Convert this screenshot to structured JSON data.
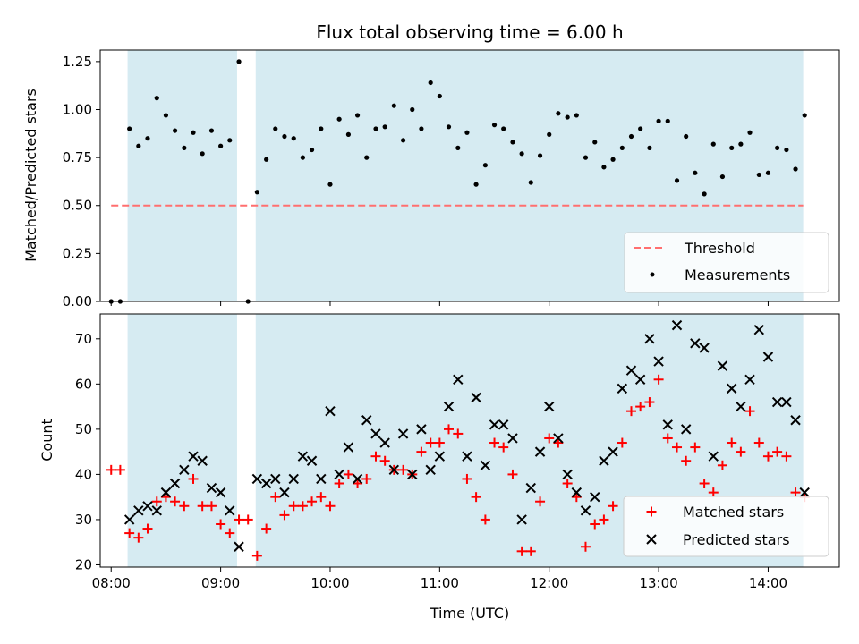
{
  "title": "Flux total observing time = 6.00 h",
  "colors": {
    "band": "#add8e6",
    "threshold": "#ff6f6f",
    "measurement": "#000000",
    "matched": "#ff0000",
    "predicted": "#000000"
  },
  "chart_data": [
    {
      "type": "scatter",
      "title": "Flux total observing time = 6.00 h",
      "xlabel": "",
      "ylabel": "Matched/Predicted stars",
      "xlim": [
        7.9,
        14.65
      ],
      "ylim": [
        0.0,
        1.31
      ],
      "yticks": [
        0.0,
        0.25,
        0.5,
        0.75,
        1.0,
        1.25
      ],
      "ytick_labels": [
        "0.00",
        "0.25",
        "0.50",
        "0.75",
        "1.00",
        "1.25"
      ],
      "shaded_bands": [
        [
          8.15,
          9.15
        ],
        [
          9.32,
          14.32
        ]
      ],
      "threshold": {
        "name": "Threshold",
        "y": 0.5,
        "x_range": [
          8.0,
          14.32
        ]
      },
      "legend_position": "lower right",
      "series": [
        {
          "name": "Measurements",
          "x": [
            8.0,
            8.083,
            8.167,
            8.25,
            8.333,
            8.417,
            8.5,
            8.583,
            8.667,
            8.75,
            8.833,
            8.917,
            9.0,
            9.083,
            9.167,
            9.25,
            9.333,
            9.417,
            9.5,
            9.583,
            9.667,
            9.75,
            9.833,
            9.917,
            10.0,
            10.083,
            10.167,
            10.25,
            10.333,
            10.417,
            10.5,
            10.583,
            10.667,
            10.75,
            10.833,
            10.917,
            11.0,
            11.083,
            11.167,
            11.25,
            11.333,
            11.417,
            11.5,
            11.583,
            11.667,
            11.75,
            11.833,
            11.917,
            12.0,
            12.083,
            12.167,
            12.25,
            12.333,
            12.417,
            12.5,
            12.583,
            12.667,
            12.75,
            12.833,
            12.917,
            13.0,
            13.083,
            13.167,
            13.25,
            13.333,
            13.417,
            13.5,
            13.583,
            13.667,
            13.75,
            13.833,
            13.917,
            14.0,
            14.083,
            14.167,
            14.25,
            14.333
          ],
          "y": [
            0.0,
            0.0,
            0.9,
            0.81,
            0.85,
            1.06,
            0.97,
            0.89,
            0.8,
            0.88,
            0.77,
            0.89,
            0.81,
            0.84,
            1.25,
            0.0,
            0.57,
            0.74,
            0.9,
            0.86,
            0.85,
            0.75,
            0.79,
            0.9,
            0.61,
            0.95,
            0.87,
            0.97,
            0.75,
            0.9,
            0.91,
            1.02,
            0.84,
            1.0,
            0.9,
            1.14,
            1.07,
            0.91,
            0.8,
            0.88,
            0.61,
            0.71,
            0.92,
            0.9,
            0.83,
            0.77,
            0.62,
            0.76,
            0.87,
            0.98,
            0.96,
            0.97,
            0.75,
            0.83,
            0.7,
            0.74,
            0.8,
            0.86,
            0.9,
            0.8,
            0.94,
            0.94,
            0.63,
            0.86,
            0.67,
            0.56,
            0.82,
            0.65,
            0.8,
            0.82,
            0.88,
            0.66,
            0.67,
            0.8,
            0.79,
            0.69,
            0.97
          ]
        }
      ]
    },
    {
      "type": "scatter",
      "title": "",
      "xlabel": "Time (UTC)",
      "ylabel": "Count",
      "xlim": [
        7.9,
        14.65
      ],
      "ylim": [
        19.5,
        75.5
      ],
      "xticks": [
        8,
        9,
        10,
        11,
        12,
        13,
        14
      ],
      "xtick_labels": [
        "08:00",
        "09:00",
        "10:00",
        "11:00",
        "12:00",
        "13:00",
        "14:00"
      ],
      "yticks": [
        20,
        30,
        40,
        50,
        60,
        70
      ],
      "ytick_labels": [
        "20",
        "30",
        "40",
        "50",
        "60",
        "70"
      ],
      "shaded_bands": [
        [
          8.15,
          9.15
        ],
        [
          9.32,
          14.32
        ]
      ],
      "legend_position": "lower right",
      "series": [
        {
          "name": "Matched stars",
          "marker": "+",
          "x": [
            8.0,
            8.083,
            8.167,
            8.25,
            8.333,
            8.417,
            8.5,
            8.583,
            8.667,
            8.75,
            8.833,
            8.917,
            9.0,
            9.083,
            9.167,
            9.25,
            9.333,
            9.417,
            9.5,
            9.583,
            9.667,
            9.75,
            9.833,
            9.917,
            10.0,
            10.083,
            10.167,
            10.25,
            10.333,
            10.417,
            10.5,
            10.583,
            10.667,
            10.75,
            10.833,
            10.917,
            11.0,
            11.083,
            11.167,
            11.25,
            11.333,
            11.417,
            11.5,
            11.583,
            11.667,
            11.75,
            11.833,
            11.917,
            12.0,
            12.083,
            12.167,
            12.25,
            12.333,
            12.417,
            12.5,
            12.583,
            12.667,
            12.75,
            12.833,
            12.917,
            13.0,
            13.083,
            13.167,
            13.25,
            13.333,
            13.417,
            13.5,
            13.583,
            13.667,
            13.75,
            13.833,
            13.917,
            14.0,
            14.083,
            14.167,
            14.25,
            14.333
          ],
          "y": [
            41,
            41,
            27,
            26,
            28,
            34,
            35,
            34,
            33,
            39,
            33,
            33,
            29,
            27,
            30,
            30,
            22,
            28,
            35,
            31,
            33,
            33,
            34,
            35,
            33,
            38,
            40,
            38,
            39,
            44,
            43,
            41,
            41,
            40,
            45,
            47,
            47,
            50,
            49,
            39,
            35,
            30,
            47,
            46,
            40,
            23,
            23,
            34,
            48,
            47,
            38,
            35,
            24,
            29,
            30,
            33,
            47,
            54,
            55,
            56,
            61,
            48,
            46,
            43,
            46,
            38,
            36,
            42,
            47,
            45,
            54,
            47,
            44,
            45,
            44,
            36,
            35
          ]
        },
        {
          "name": "Predicted stars",
          "marker": "x",
          "x": [
            8.167,
            8.25,
            8.333,
            8.417,
            8.5,
            8.583,
            8.667,
            8.75,
            8.833,
            8.917,
            9.0,
            9.083,
            9.167,
            9.333,
            9.417,
            9.5,
            9.583,
            9.667,
            9.75,
            9.833,
            9.917,
            10.0,
            10.083,
            10.167,
            10.25,
            10.333,
            10.417,
            10.5,
            10.583,
            10.667,
            10.75,
            10.833,
            10.917,
            11.0,
            11.083,
            11.167,
            11.25,
            11.333,
            11.417,
            11.5,
            11.583,
            11.667,
            11.75,
            11.833,
            11.917,
            12.0,
            12.083,
            12.167,
            12.25,
            12.333,
            12.417,
            12.5,
            12.583,
            12.667,
            12.75,
            12.833,
            12.917,
            13.0,
            13.083,
            13.167,
            13.25,
            13.333,
            13.417,
            13.5,
            13.583,
            13.667,
            13.75,
            13.833,
            13.917,
            14.0,
            14.083,
            14.167,
            14.25,
            14.333
          ],
          "y": [
            30,
            32,
            33,
            32,
            36,
            38,
            41,
            44,
            43,
            37,
            36,
            32,
            24,
            39,
            38,
            39,
            36,
            39,
            44,
            43,
            39,
            54,
            40,
            46,
            39,
            52,
            49,
            47,
            41,
            49,
            40,
            50,
            41,
            44,
            55,
            61,
            44,
            57,
            42,
            51,
            51,
            48,
            30,
            37,
            45,
            55,
            48,
            40,
            36,
            32,
            35,
            43,
            45,
            59,
            63,
            61,
            70,
            65,
            51,
            73,
            50,
            69,
            68,
            44,
            64,
            59,
            55,
            61,
            72,
            66,
            56,
            56,
            52,
            36
          ]
        }
      ]
    }
  ]
}
